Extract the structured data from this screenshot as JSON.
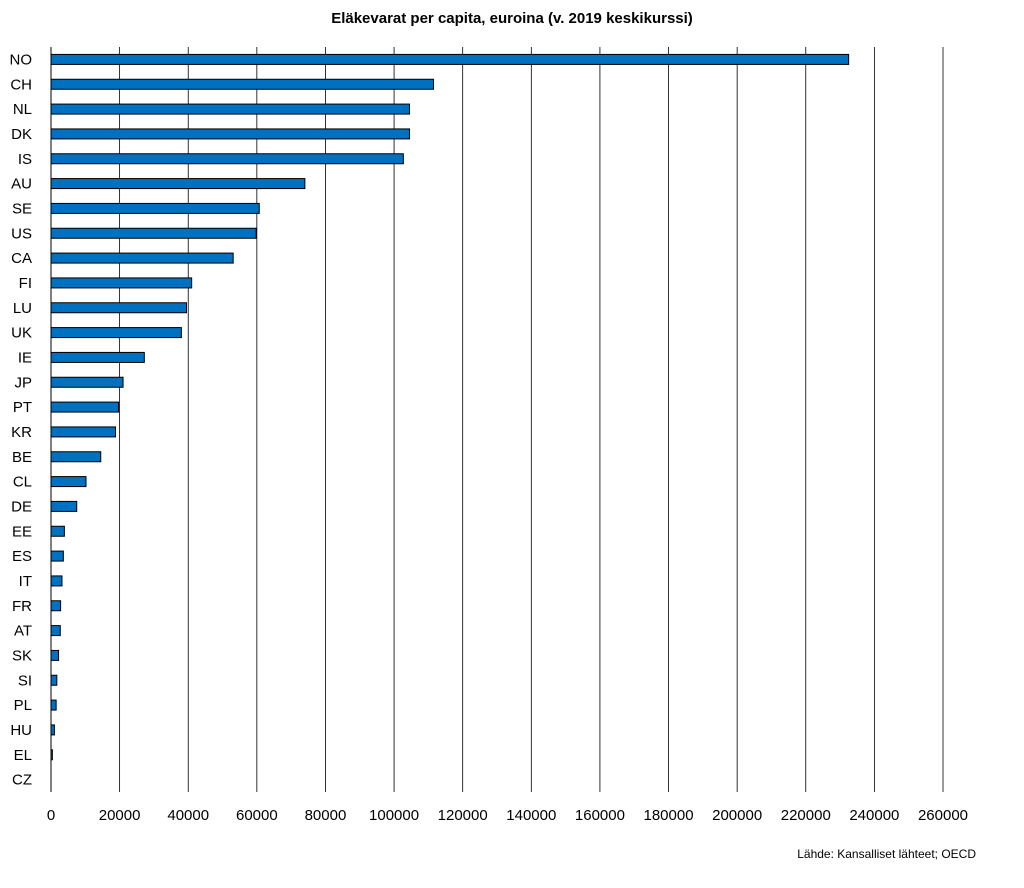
{
  "chart_data": {
    "type": "bar",
    "orientation": "horizontal",
    "title": "Eläkevarat per capita, euroina (v. 2019 keskikurssi)",
    "categories": [
      "NO",
      "CH",
      "NL",
      "DK",
      "IS",
      "AU",
      "SE",
      "US",
      "CA",
      "FI",
      "LU",
      "UK",
      "IE",
      "JP",
      "PT",
      "KR",
      "BE",
      "CL",
      "DE",
      "EE",
      "ES",
      "IT",
      "FR",
      "AT",
      "SK",
      "SI",
      "PL",
      "HU",
      "EL",
      "CZ"
    ],
    "values": [
      232500,
      111500,
      104500,
      104500,
      102700,
      74000,
      60700,
      59800,
      53100,
      41000,
      39500,
      38000,
      27200,
      21000,
      19700,
      18800,
      14500,
      10200,
      7500,
      3900,
      3600,
      3200,
      2800,
      2700,
      2200,
      1700,
      1500,
      1000,
      400,
      0
    ],
    "xticks": [
      "0",
      "20000",
      "40000",
      "60000",
      "80000",
      "100000",
      "120000",
      "140000",
      "160000",
      "180000",
      "200000",
      "220000",
      "240000",
      "260000"
    ],
    "xlim": [
      0,
      260000
    ],
    "xlabel": "",
    "ylabel": "",
    "grid": true,
    "bar_color": "#0070C0",
    "legend": "none"
  },
  "source": "Lähde: Kansalliset lähteet; OECD"
}
